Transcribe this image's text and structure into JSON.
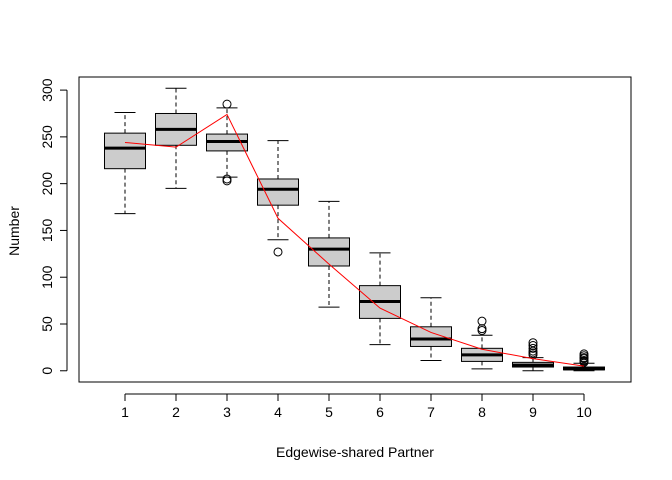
{
  "chart_data": {
    "type": "boxplot",
    "title": "",
    "xlabel": "Edgewise-shared Partner",
    "ylabel": "Number",
    "categories": [
      "1",
      "2",
      "3",
      "4",
      "5",
      "6",
      "7",
      "8",
      "9",
      "10"
    ],
    "ylim": [
      -12,
      314
    ],
    "yticks": [
      0,
      50,
      100,
      150,
      200,
      250,
      300
    ],
    "boxes": [
      {
        "category": "1",
        "whisker_low": 168,
        "q1": 216,
        "median": 238,
        "q3": 254,
        "whisker_high": 276,
        "outliers": []
      },
      {
        "category": "2",
        "whisker_low": 195,
        "q1": 241,
        "median": 258,
        "q3": 275,
        "whisker_high": 302,
        "outliers": []
      },
      {
        "category": "3",
        "whisker_low": 207,
        "q1": 235,
        "median": 245,
        "q3": 253,
        "whisker_high": 281,
        "outliers": [
          285,
          205,
          203
        ]
      },
      {
        "category": "4",
        "whisker_low": 140,
        "q1": 177,
        "median": 194,
        "q3": 205,
        "whisker_high": 246,
        "outliers": [
          127
        ]
      },
      {
        "category": "5",
        "whisker_low": 68,
        "q1": 112,
        "median": 130,
        "q3": 142,
        "whisker_high": 181,
        "outliers": []
      },
      {
        "category": "6",
        "whisker_low": 28,
        "q1": 56,
        "median": 74,
        "q3": 91,
        "whisker_high": 126,
        "outliers": []
      },
      {
        "category": "7",
        "whisker_low": 11,
        "q1": 26,
        "median": 34,
        "q3": 47,
        "whisker_high": 78,
        "outliers": []
      },
      {
        "category": "8",
        "whisker_low": 2,
        "q1": 10,
        "median": 17,
        "q3": 24,
        "whisker_high": 38,
        "outliers": [
          53,
          45,
          43
        ]
      },
      {
        "category": "9",
        "whisker_low": 0,
        "q1": 4,
        "median": 6,
        "q3": 9,
        "whisker_high": 14,
        "outliers": [
          30,
          27,
          24,
          21,
          19,
          17
        ]
      },
      {
        "category": "10",
        "whisker_low": 0,
        "q1": 1,
        "median": 2,
        "q3": 4,
        "whisker_high": 8,
        "outliers": [
          18,
          16,
          14,
          13,
          11,
          10,
          9
        ]
      }
    ],
    "line": {
      "color": "#ff0000",
      "values": [
        244,
        239,
        274,
        163,
        114,
        67,
        41,
        23,
        13,
        5
      ]
    },
    "box_fill": "#cccccc",
    "stroke": "#000000",
    "grid": false,
    "legend": "none"
  }
}
